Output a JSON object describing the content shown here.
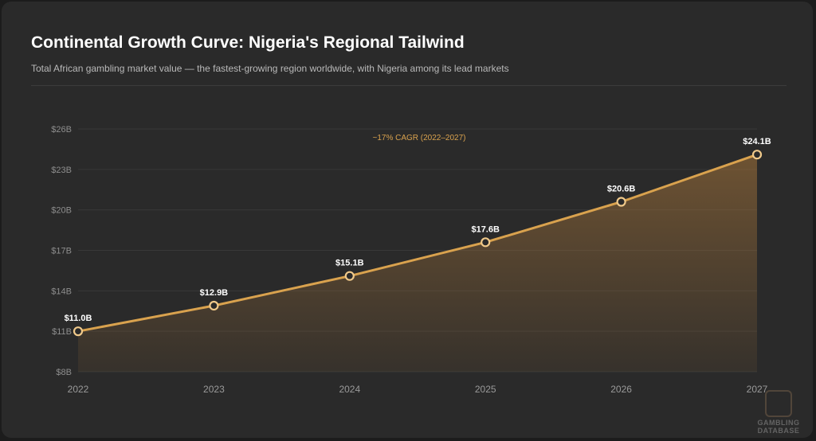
{
  "header": {
    "title": "Continental Growth Curve: Nigeria's Regional Tailwind",
    "subtitle": "Total African gambling market value — the fastest-growing region worldwide, with Nigeria among its lead markets"
  },
  "chart_data": {
    "type": "area",
    "categories": [
      "2022",
      "2023",
      "2024",
      "2025",
      "2026",
      "2027"
    ],
    "series": [
      {
        "values": [
          11.0,
          12.9,
          15.1,
          17.6,
          20.6,
          24.1
        ]
      }
    ],
    "data_labels": [
      "$11.0B",
      "$12.9B",
      "$15.1B",
      "$17.6B",
      "$20.6B",
      "$24.1B"
    ],
    "y_ticks": [
      8,
      11,
      14,
      17,
      20,
      23,
      26
    ],
    "y_tick_labels": [
      "$8B",
      "$11B",
      "$14B",
      "$17B",
      "$20B",
      "$23B",
      "$26B"
    ],
    "ylim": [
      8,
      26
    ],
    "annotation": "~17% CAGR (2022–2027)",
    "grid": true,
    "colors": {
      "line": "#d9a24e",
      "annotation": "#d9a24e",
      "point_fill": "#2a2a2a",
      "point_stroke": "#f0c98a"
    }
  },
  "watermark": {
    "line1": "GAMBLING",
    "line2": "DATABASE"
  }
}
